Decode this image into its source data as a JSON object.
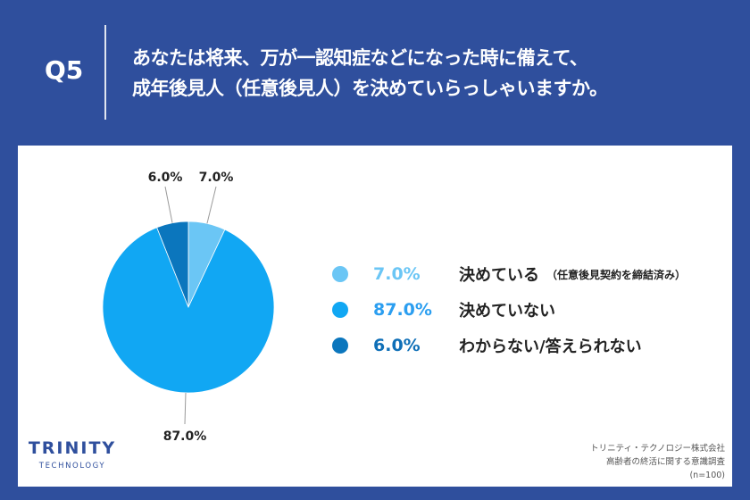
{
  "header": {
    "q_label": "Q5",
    "question_line1": "あなたは将来、万が一認知症などになった時に備えて、",
    "question_line2": "成年後見人（任意後見人）を決めていらっしゃいますか。"
  },
  "chart_data": {
    "type": "pie",
    "slices": [
      {
        "label": "決めている",
        "sublabel": "（任意後見契約を締結済み）",
        "value": 7.0,
        "display": "7.0%",
        "color": "#6bc6f5",
        "value_color": "#6bc6f5"
      },
      {
        "label": "決めていない",
        "sublabel": "",
        "value": 87.0,
        "display": "87.0%",
        "color": "#11a7f3",
        "value_color": "#2b9ef0"
      },
      {
        "label": "わからない/答えられない",
        "sublabel": "",
        "value": 6.0,
        "display": "6.0%",
        "color": "#0b76bd",
        "value_color": "#0f6fb7"
      }
    ]
  },
  "logo": {
    "main": "TRINITY",
    "sub": "TECHNOLOGY"
  },
  "source": {
    "company": "トリニティ・テクノロジー株式会社",
    "survey": "高齢者の終活に関する意識調査",
    "n": "(n=100)"
  },
  "colors": {
    "background": "#2f4f9d",
    "panel": "#ffffff"
  }
}
